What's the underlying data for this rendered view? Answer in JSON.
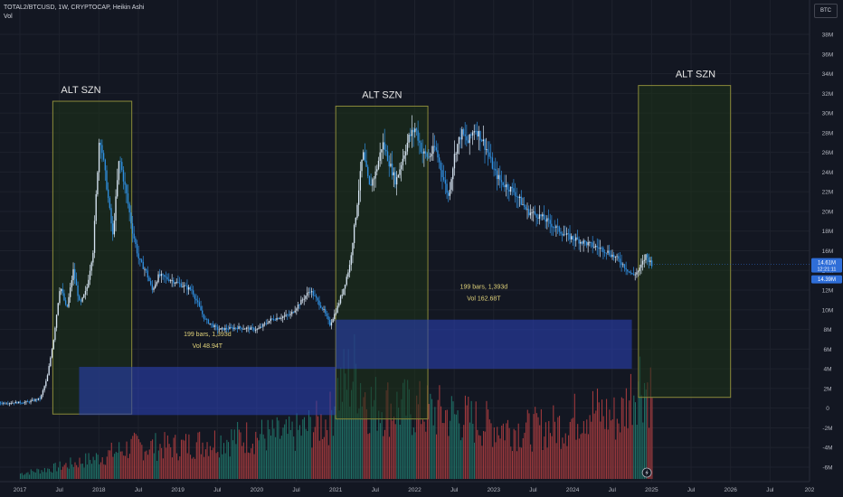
{
  "header": {
    "symbol_line": "TOTAL2/BTCUSD, 1W, CRYPTOCAP, Heikin Ashi",
    "volume_label": "Vol"
  },
  "currency_button": "BTC",
  "price_tags": {
    "current": "14.61M",
    "countdown": "12:21:11",
    "low": "14.39M"
  },
  "colors": {
    "background": "#131722",
    "grid": "#1e222d",
    "candle_main": "#2f8fe0",
    "candle_light": "#d6e4f2",
    "zone_fill": "#1e3318",
    "zone_border": "#8a8a3a",
    "range_fill": "#2a3fb0",
    "vol_up": "#1f6f65",
    "vol_down": "#a13a3d",
    "text_yellow": "#e0d27a"
  },
  "annotations": [
    {
      "id": "zone-1",
      "label": "ALT SZN",
      "x_start": "2017-06",
      "x_end": "2018-06",
      "y_top": 31.2,
      "y_bottom": -0.6
    },
    {
      "id": "zone-2",
      "label": "ALT SZN",
      "x_start": "2021-01",
      "x_end": "2022-03",
      "y_top": 30.7,
      "y_bottom": -1.1
    },
    {
      "id": "zone-3",
      "label": "ALT SZN",
      "x_start": "2024-11",
      "x_end": "2026-01",
      "y_top": 32.8,
      "y_bottom": 1.1
    }
  ],
  "ranges": [
    {
      "id": "range-1",
      "line1": "199 bars, 1,393d",
      "line2": "Vol 48.94T",
      "x_start": "2017-10",
      "x_end": "2021-01",
      "y_top": 4.2,
      "y_bottom": -0.7
    },
    {
      "id": "range-2",
      "line1": "199 bars, 1,393d",
      "line2": "Vol 162.68T",
      "x_start": "2021-01",
      "x_end": "2024-10",
      "y_top": 9.0,
      "y_bottom": 4.0
    }
  ],
  "chart_data": {
    "type": "candlestick",
    "title": "TOTAL2/BTCUSD, 1W, CRYPTOCAP, Heikin Ashi",
    "yunit": "BTC",
    "ylim": [
      -6.5,
      40
    ],
    "yticks": [
      "38M",
      "36M",
      "34M",
      "32M",
      "30M",
      "28M",
      "26M",
      "24M",
      "22M",
      "20M",
      "18M",
      "16M",
      "14M",
      "12M",
      "10M",
      "8M",
      "6M",
      "4M",
      "2M",
      "0",
      "-2M",
      "-4M",
      "-6M"
    ],
    "yvalues": [
      38,
      36,
      34,
      32,
      30,
      28,
      26,
      24,
      22,
      20,
      18,
      16,
      14,
      12,
      10,
      8,
      6,
      4,
      2,
      0,
      -2,
      -4,
      -6
    ],
    "xticks": [
      "2017",
      "Jul",
      "2018",
      "Jul",
      "2019",
      "Jul",
      "2020",
      "Jul",
      "2021",
      "Jul",
      "2022",
      "Jul",
      "2023",
      "Jul",
      "2024",
      "Jul",
      "2025",
      "Jul",
      "2026",
      "Jul",
      "202"
    ],
    "xdates": [
      "2017-01",
      "2017-07",
      "2018-01",
      "2018-07",
      "2019-01",
      "2019-07",
      "2020-01",
      "2020-07",
      "2021-01",
      "2021-07",
      "2022-01",
      "2022-07",
      "2023-01",
      "2023-07",
      "2024-01",
      "2024-07",
      "2025-01",
      "2025-07",
      "2026-01",
      "2026-07",
      "2027-01"
    ],
    "price_series": {
      "name": "",
      "points": [
        [
          "2016-09",
          0.5
        ],
        [
          "2017-02",
          0.6
        ],
        [
          "2017-04",
          1.0
        ],
        [
          "2017-05",
          3.0
        ],
        [
          "2017-06",
          7.0
        ],
        [
          "2017-07",
          12.5
        ],
        [
          "2017-08",
          10.0
        ],
        [
          "2017-09",
          14.0
        ],
        [
          "2017-10",
          10.5
        ],
        [
          "2017-11",
          12.0
        ],
        [
          "2017-12",
          16.0
        ],
        [
          "2018-01",
          28.0
        ],
        [
          "2018-02",
          23.0
        ],
        [
          "2018-03",
          17.5
        ],
        [
          "2018-04",
          25.5
        ],
        [
          "2018-05",
          22.0
        ],
        [
          "2018-06",
          18.0
        ],
        [
          "2018-07",
          15.0
        ],
        [
          "2018-08",
          14.0
        ],
        [
          "2018-09",
          12.0
        ],
        [
          "2018-10",
          13.5
        ],
        [
          "2018-12",
          13.0
        ],
        [
          "2019-03",
          12.0
        ],
        [
          "2019-05",
          9.0
        ],
        [
          "2019-07",
          8.0
        ],
        [
          "2019-10",
          8.2
        ],
        [
          "2020-01",
          8.0
        ],
        [
          "2020-03",
          9.0
        ],
        [
          "2020-06",
          9.5
        ],
        [
          "2020-09",
          12.0
        ],
        [
          "2020-11",
          10.0
        ],
        [
          "2020-12",
          8.5
        ],
        [
          "2021-01",
          10.0
        ],
        [
          "2021-02",
          12.0
        ],
        [
          "2021-03",
          14.5
        ],
        [
          "2021-04",
          20.0
        ],
        [
          "2021-05",
          26.0
        ],
        [
          "2021-06",
          22.5
        ],
        [
          "2021-07",
          24.0
        ],
        [
          "2021-08",
          27.0
        ],
        [
          "2021-10",
          23.0
        ],
        [
          "2021-12",
          27.5
        ],
        [
          "2022-01",
          28.5
        ],
        [
          "2022-02",
          26.0
        ],
        [
          "2022-03",
          25.5
        ],
        [
          "2022-04",
          26.5
        ],
        [
          "2022-05",
          24.0
        ],
        [
          "2022-06",
          21.5
        ],
        [
          "2022-07",
          26.0
        ],
        [
          "2022-08",
          28.0
        ],
        [
          "2022-09",
          27.0
        ],
        [
          "2022-10",
          28.5
        ],
        [
          "2022-11",
          27.5
        ],
        [
          "2022-12",
          26.0
        ],
        [
          "2023-01",
          24.0
        ],
        [
          "2023-02",
          23.0
        ],
        [
          "2023-04",
          22.0
        ],
        [
          "2023-06",
          20.0
        ],
        [
          "2023-08",
          19.5
        ],
        [
          "2023-10",
          18.5
        ],
        [
          "2023-12",
          17.5
        ],
        [
          "2024-02",
          17.0
        ],
        [
          "2024-04",
          16.5
        ],
        [
          "2024-06",
          16.0
        ],
        [
          "2024-08",
          15.0
        ],
        [
          "2024-10",
          13.5
        ],
        [
          "2024-11",
          14.0
        ],
        [
          "2024-12",
          15.5
        ],
        [
          "2025-01",
          14.61
        ]
      ]
    },
    "volume_series": {
      "name": "Vol",
      "points": [
        [
          "2017-01",
          0.05
        ],
        [
          "2017-06",
          0.1
        ],
        [
          "2018-01",
          0.2
        ],
        [
          "2018-06",
          0.3
        ],
        [
          "2019-01",
          0.3
        ],
        [
          "2019-06",
          0.35
        ],
        [
          "2020-01",
          0.4
        ],
        [
          "2020-06",
          0.4
        ],
        [
          "2020-12",
          0.55
        ],
        [
          "2021-01",
          0.8
        ],
        [
          "2021-04",
          1.0
        ],
        [
          "2021-06",
          0.7
        ],
        [
          "2021-12",
          0.65
        ],
        [
          "2022-06",
          0.6
        ],
        [
          "2022-12",
          0.5
        ],
        [
          "2023-06",
          0.45
        ],
        [
          "2023-12",
          0.5
        ],
        [
          "2024-03",
          0.65
        ],
        [
          "2024-08",
          0.55
        ],
        [
          "2024-11",
          0.95
        ],
        [
          "2025-01",
          0.8
        ]
      ]
    }
  }
}
